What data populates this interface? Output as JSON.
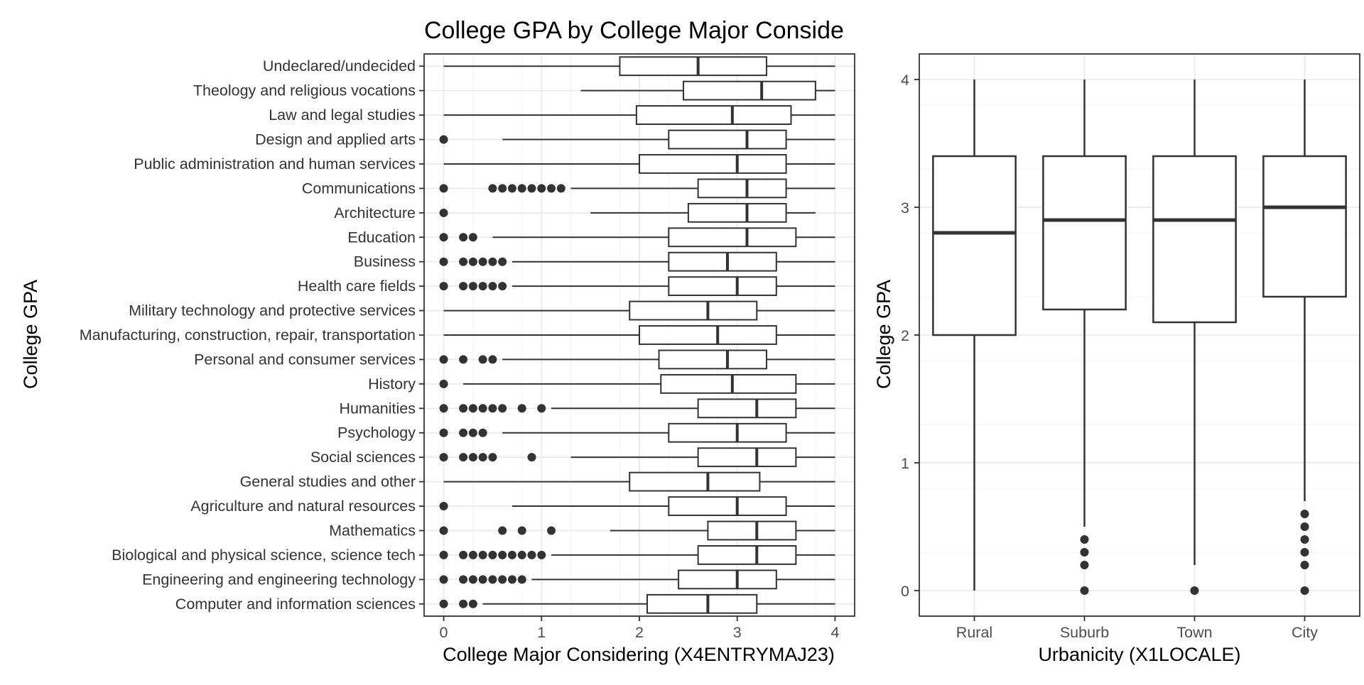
{
  "chart_data": [
    {
      "type": "boxplot",
      "orientation": "horizontal",
      "title": "College GPA by College Major Conside",
      "xlabel": "College Major Considering (X4ENTRYMAJ23)",
      "ylabel": "College GPA",
      "xlim": [
        -0.2,
        4.2
      ],
      "xticks": [
        "0",
        "1",
        "2",
        "3",
        "4"
      ],
      "xtick_values": [
        0,
        1,
        2,
        3,
        4
      ],
      "grid": true,
      "colors": {
        "box_stroke": "#333333",
        "outlier": "#333333",
        "grid": "#ebebeb",
        "panel_border": "#333333"
      },
      "categories": [
        "Undeclared/undecided",
        "Theology and religious vocations",
        "Law and legal studies",
        "Design and applied arts",
        "Public administration and human services",
        "Communications",
        "Architecture",
        "Education",
        "Business",
        "Health care fields",
        "Military technology and protective services",
        "Manufacturing, construction, repair, transportation",
        "Personal and consumer services",
        "History",
        "Humanities",
        "Psychology",
        "Social sciences",
        "General studies and other",
        "Agriculture and natural resources",
        "Mathematics",
        "Biological and physical science, science tech",
        "Engineering and engineering technology",
        "Computer and information sciences"
      ],
      "boxes": [
        {
          "whisker_low": 0.0,
          "q1": 1.8,
          "median": 2.6,
          "q3": 3.3,
          "whisker_high": 4.0,
          "outliers": []
        },
        {
          "whisker_low": 1.4,
          "q1": 2.45,
          "median": 3.25,
          "q3": 3.8,
          "whisker_high": 4.0,
          "outliers": []
        },
        {
          "whisker_low": 0.0,
          "q1": 1.97,
          "median": 2.95,
          "q3": 3.55,
          "whisker_high": 4.0,
          "outliers": []
        },
        {
          "whisker_low": 0.6,
          "q1": 2.3,
          "median": 3.1,
          "q3": 3.5,
          "whisker_high": 4.0,
          "outliers": [
            0.0
          ]
        },
        {
          "whisker_low": 0.0,
          "q1": 2.0,
          "median": 3.0,
          "q3": 3.5,
          "whisker_high": 4.0,
          "outliers": []
        },
        {
          "whisker_low": 1.3,
          "q1": 2.6,
          "median": 3.1,
          "q3": 3.5,
          "whisker_high": 4.0,
          "outliers": [
            0.0,
            0.5,
            0.6,
            0.7,
            0.8,
            0.9,
            1.0,
            1.1,
            1.2
          ]
        },
        {
          "whisker_low": 1.5,
          "q1": 2.5,
          "median": 3.1,
          "q3": 3.5,
          "whisker_high": 3.8,
          "outliers": [
            0.0
          ]
        },
        {
          "whisker_low": 0.5,
          "q1": 2.3,
          "median": 3.1,
          "q3": 3.6,
          "whisker_high": 4.0,
          "outliers": [
            0.0,
            0.2,
            0.3
          ]
        },
        {
          "whisker_low": 0.7,
          "q1": 2.3,
          "median": 2.9,
          "q3": 3.4,
          "whisker_high": 4.0,
          "outliers": [
            0.0,
            0.2,
            0.3,
            0.4,
            0.5,
            0.6
          ]
        },
        {
          "whisker_low": 0.7,
          "q1": 2.3,
          "median": 3.0,
          "q3": 3.4,
          "whisker_high": 4.0,
          "outliers": [
            0.0,
            0.2,
            0.3,
            0.4,
            0.5,
            0.6
          ]
        },
        {
          "whisker_low": 0.0,
          "q1": 1.9,
          "median": 2.7,
          "q3": 3.2,
          "whisker_high": 4.0,
          "outliers": []
        },
        {
          "whisker_low": 0.0,
          "q1": 2.0,
          "median": 2.8,
          "q3": 3.4,
          "whisker_high": 4.0,
          "outliers": []
        },
        {
          "whisker_low": 0.6,
          "q1": 2.2,
          "median": 2.9,
          "q3": 3.3,
          "whisker_high": 4.0,
          "outliers": [
            0.0,
            0.2,
            0.4,
            0.5
          ]
        },
        {
          "whisker_low": 0.2,
          "q1": 2.22,
          "median": 2.95,
          "q3": 3.6,
          "whisker_high": 4.0,
          "outliers": [
            0.0
          ]
        },
        {
          "whisker_low": 1.1,
          "q1": 2.6,
          "median": 3.2,
          "q3": 3.6,
          "whisker_high": 4.0,
          "outliers": [
            0.0,
            0.2,
            0.3,
            0.4,
            0.5,
            0.6,
            0.8,
            1.0
          ]
        },
        {
          "whisker_low": 0.6,
          "q1": 2.3,
          "median": 3.0,
          "q3": 3.5,
          "whisker_high": 4.0,
          "outliers": [
            0.0,
            0.2,
            0.3,
            0.4
          ]
        },
        {
          "whisker_low": 1.3,
          "q1": 2.6,
          "median": 3.2,
          "q3": 3.6,
          "whisker_high": 4.0,
          "outliers": [
            0.0,
            0.2,
            0.3,
            0.4,
            0.5,
            0.9
          ]
        },
        {
          "whisker_low": 0.0,
          "q1": 1.9,
          "median": 2.7,
          "q3": 3.23,
          "whisker_high": 4.0,
          "outliers": []
        },
        {
          "whisker_low": 0.7,
          "q1": 2.3,
          "median": 3.0,
          "q3": 3.5,
          "whisker_high": 4.0,
          "outliers": [
            0.0
          ]
        },
        {
          "whisker_low": 1.7,
          "q1": 2.7,
          "median": 3.2,
          "q3": 3.6,
          "whisker_high": 4.0,
          "outliers": [
            0.0,
            0.6,
            0.8,
            1.1
          ]
        },
        {
          "whisker_low": 1.1,
          "q1": 2.6,
          "median": 3.2,
          "q3": 3.6,
          "whisker_high": 4.0,
          "outliers": [
            0.0,
            0.2,
            0.3,
            0.4,
            0.5,
            0.6,
            0.7,
            0.8,
            0.9,
            1.0
          ]
        },
        {
          "whisker_low": 0.9,
          "q1": 2.4,
          "median": 3.0,
          "q3": 3.4,
          "whisker_high": 4.0,
          "outliers": [
            0.0,
            0.2,
            0.3,
            0.4,
            0.5,
            0.6,
            0.7,
            0.8
          ]
        },
        {
          "whisker_low": 0.4,
          "q1": 2.08,
          "median": 2.7,
          "q3": 3.2,
          "whisker_high": 4.0,
          "outliers": [
            0.0,
            0.2,
            0.3
          ]
        }
      ]
    },
    {
      "type": "boxplot",
      "orientation": "vertical",
      "title": "",
      "xlabel": "Urbanicity (X1LOCALE)",
      "ylabel": "College GPA",
      "ylim": [
        -0.2,
        4.2
      ],
      "yticks": [
        "0",
        "1",
        "2",
        "3",
        "4"
      ],
      "ytick_values": [
        0,
        1,
        2,
        3,
        4
      ],
      "grid": true,
      "categories": [
        "Rural",
        "Suburb",
        "Town",
        "City"
      ],
      "boxes": [
        {
          "whisker_low": 0.0,
          "q1": 2.0,
          "median": 2.8,
          "q3": 3.4,
          "whisker_high": 4.0,
          "outliers": []
        },
        {
          "whisker_low": 0.5,
          "q1": 2.2,
          "median": 2.9,
          "q3": 3.4,
          "whisker_high": 4.0,
          "outliers": [
            0.0,
            0.2,
            0.3,
            0.4
          ]
        },
        {
          "whisker_low": 0.2,
          "q1": 2.1,
          "median": 2.9,
          "q3": 3.4,
          "whisker_high": 4.0,
          "outliers": [
            0.0
          ]
        },
        {
          "whisker_low": 0.7,
          "q1": 2.3,
          "median": 3.0,
          "q3": 3.4,
          "whisker_high": 4.0,
          "outliers": [
            0.0,
            0.2,
            0.3,
            0.4,
            0.5,
            0.6
          ]
        }
      ]
    }
  ]
}
